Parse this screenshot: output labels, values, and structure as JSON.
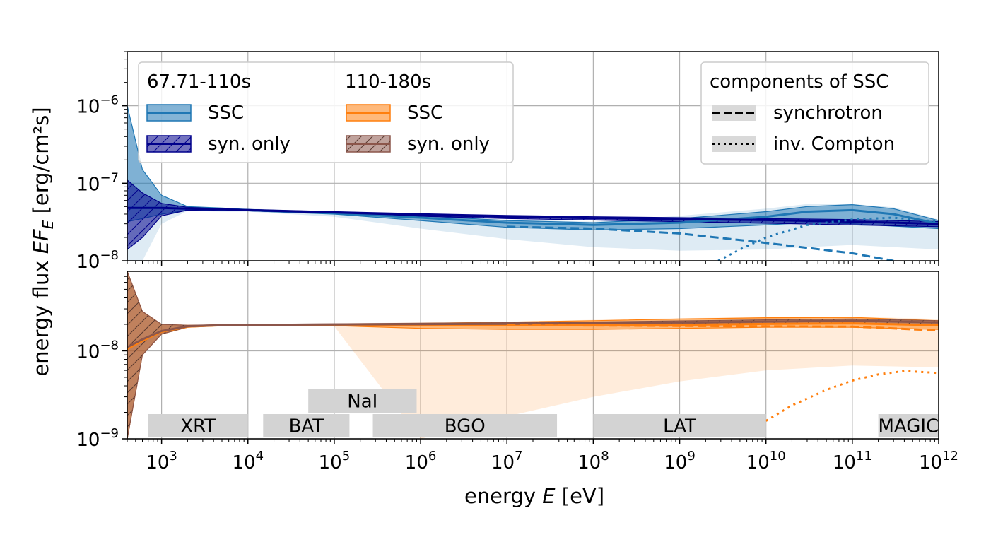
{
  "figure": {
    "ylabel_prefix": "energy flux ",
    "ylabel_symbol": "EF",
    "ylabel_sub": "E",
    "ylabel_unit": " [erg/cm²s]",
    "xlabel_prefix": "energy ",
    "xlabel_symbol": "E",
    "xlabel_unit": " [eV]"
  },
  "legend_left": {
    "groups": [
      {
        "title": "67.71-110s",
        "items": [
          {
            "label": "SSC",
            "color": "#1f77b4",
            "hatch": false
          },
          {
            "label": "syn. only",
            "color": "#00008b",
            "hatch": true
          }
        ]
      },
      {
        "title": "110-180s",
        "items": [
          {
            "label": "SSC",
            "color": "#ff7f0e",
            "hatch": false
          },
          {
            "label": "syn. only",
            "color": "#8c564b",
            "hatch": true
          }
        ]
      }
    ]
  },
  "legend_right": {
    "title": "components of SSC",
    "items": [
      {
        "label": "synchrotron",
        "style": "dashed"
      },
      {
        "label": "inv. Compton",
        "style": "dotted"
      }
    ]
  },
  "instruments": [
    {
      "name": "XRT",
      "range": [
        700,
        10000
      ],
      "row": 0
    },
    {
      "name": "BAT",
      "range": [
        15000,
        150000
      ],
      "row": 0
    },
    {
      "name": "NaI",
      "range": [
        50000,
        900000
      ],
      "row": 1
    },
    {
      "name": "BGO",
      "range": [
        280000,
        38000000
      ],
      "row": 0
    },
    {
      "name": "LAT",
      "range": [
        100000000,
        10000000000
      ],
      "row": 0
    },
    {
      "name": "MAGIC",
      "range": [
        200000000000,
        1000000000000
      ],
      "row": 0
    }
  ],
  "chart_data": [
    {
      "type": "area",
      "panel": "top",
      "xscale": "log",
      "yscale": "log",
      "xlim": [
        400,
        1000000000000
      ],
      "ylim": [
        1e-08,
        5e-06
      ],
      "yticks": [
        {
          "value": 1e-06,
          "mant": "10",
          "exp": "−6"
        },
        {
          "value": 1e-07,
          "mant": "10",
          "exp": "−7"
        },
        {
          "value": 1e-08,
          "mant": "10",
          "exp": "−8"
        }
      ],
      "grid": true,
      "series": [
        {
          "name": "SSC",
          "color": "#1f77b4",
          "x": [
            400,
            600,
            1000,
            2000,
            5000,
            10000,
            100000,
            1000000,
            10000000,
            100000000,
            1000000000,
            10000000000,
            30000000000,
            100000000000,
            300000000000,
            1000000000000
          ],
          "y": [
            4.8e-08,
            4.8e-08,
            4.8e-08,
            4.7e-08,
            4.6e-08,
            4.5e-08,
            4.1e-08,
            3.6e-08,
            3.1e-08,
            2.9e-08,
            3.1e-08,
            3.7e-08,
            4.3e-08,
            4.5e-08,
            4e-08,
            3e-08
          ],
          "y_low": [
            3.2e-08,
            3.5e-08,
            4e-08,
            4.5e-08,
            4.4e-08,
            4.4e-08,
            4e-08,
            3.3e-08,
            2.7e-08,
            2.5e-08,
            2.6e-08,
            2.9e-08,
            3.1e-08,
            3e-08,
            2.8e-08,
            2.6e-08
          ],
          "y_high": [
            1e-06,
            1.5e-07,
            7e-08,
            5e-08,
            4.8e-08,
            4.6e-08,
            4.2e-08,
            3.8e-08,
            3.3e-08,
            3.1e-08,
            3.5e-08,
            4.3e-08,
            5e-08,
            5.3e-08,
            4.7e-08,
            3.3e-08
          ],
          "outer_low": [
            1e-08,
            1e-08,
            3e-08,
            4.4e-08,
            4.3e-08,
            4.3e-08,
            3.7e-08,
            2.6e-08,
            1.9e-08,
            1.5e-08,
            1.35e-08,
            1.4e-08,
            1.5e-08,
            1.6e-08,
            1.5e-08,
            1.4e-08
          ],
          "outer_high": [
            1e-06,
            1.5e-07,
            7e-08,
            5e-08,
            4.8e-08,
            4.7e-08,
            4.3e-08,
            3.9e-08,
            3.4e-08,
            3.2e-08,
            3.8e-08,
            4.7e-08,
            5.4e-08,
            5.4e-08,
            4.9e-08,
            3.4e-08
          ]
        },
        {
          "name": "syn. only",
          "color": "#00008b",
          "x": [
            400,
            600,
            1000,
            2000,
            5000,
            10000,
            100000,
            1000000,
            10000000,
            100000000,
            1000000000,
            10000000000,
            100000000000,
            1000000000000
          ],
          "y": [
            4.8e-08,
            4.8e-08,
            4.8e-08,
            4.7e-08,
            4.6e-08,
            4.5e-08,
            4.2e-08,
            3.9e-08,
            3.7e-08,
            3.55e-08,
            3.45e-08,
            3.35e-08,
            3.2e-08,
            3e-08
          ],
          "y_low": [
            1.4e-08,
            2e-08,
            3.8e-08,
            4.5e-08,
            4.5e-08,
            4.4e-08,
            4.1e-08,
            3.75e-08,
            3.5e-08,
            3.35e-08,
            3.2e-08,
            3.05e-08,
            2.9e-08,
            2.75e-08
          ],
          "y_high": [
            1.1e-07,
            7.5e-08,
            5.5e-08,
            4.9e-08,
            4.7e-08,
            4.6e-08,
            4.3e-08,
            4.05e-08,
            3.85e-08,
            3.7e-08,
            3.6e-08,
            3.5e-08,
            3.4e-08,
            3.2e-08
          ]
        },
        {
          "name": "synchrotron",
          "color": "#1f77b4",
          "x": [
            10000000,
            100000000,
            1000000000,
            10000000000,
            100000000000,
            300000000000
          ],
          "y": [
            2.75e-08,
            2.6e-08,
            2.25e-08,
            1.7e-08,
            1.25e-08,
            1e-08
          ]
        },
        {
          "name": "inv. Compton",
          "color": "#1f77b4",
          "x": [
            2800000000,
            5000000000,
            10000000000,
            30000000000,
            100000000000,
            300000000000,
            1000000000000
          ],
          "y": [
            1e-08,
            1.4e-08,
            2e-08,
            2.9e-08,
            3.4e-08,
            3.6e-08,
            3.2e-08
          ]
        }
      ]
    },
    {
      "type": "area",
      "panel": "bottom",
      "xscale": "log",
      "yscale": "log",
      "xlim": [
        400,
        1000000000000
      ],
      "ylim": [
        1e-09,
        8e-08
      ],
      "yticks": [
        {
          "value": 1e-08,
          "mant": "10",
          "exp": "−8"
        },
        {
          "value": 1e-09,
          "mant": "10",
          "exp": "−9"
        }
      ],
      "xticks": [
        {
          "value": 1000,
          "mant": "10",
          "exp": "3"
        },
        {
          "value": 10000,
          "mant": "10",
          "exp": "4"
        },
        {
          "value": 100000,
          "mant": "10",
          "exp": "5"
        },
        {
          "value": 1000000,
          "mant": "10",
          "exp": "6"
        },
        {
          "value": 10000000,
          "mant": "10",
          "exp": "7"
        },
        {
          "value": 100000000,
          "mant": "10",
          "exp": "8"
        },
        {
          "value": 1000000000,
          "mant": "10",
          "exp": "9"
        },
        {
          "value": 10000000000,
          "mant": "10",
          "exp": "10"
        },
        {
          "value": 100000000000,
          "mant": "10",
          "exp": "11"
        },
        {
          "value": 1000000000000,
          "mant": "10",
          "exp": "12"
        }
      ],
      "grid": true,
      "series": [
        {
          "name": "SSC",
          "color": "#ff7f0e",
          "x": [
            400,
            600,
            1000,
            2000,
            5000,
            10000,
            100000,
            1000000,
            10000000,
            100000000,
            1000000000,
            10000000000,
            100000000000,
            1000000000000
          ],
          "y": [
            1.05e-08,
            1.3e-08,
            1.65e-08,
            1.88e-08,
            1.95e-08,
            1.96e-08,
            1.97e-08,
            1.96e-08,
            1.95e-08,
            1.95e-08,
            1.97e-08,
            2.02e-08,
            2.05e-08,
            1.95e-08
          ],
          "y_low": [
            1e-09,
            9e-09,
            1.55e-08,
            1.85e-08,
            1.93e-08,
            1.94e-08,
            1.93e-08,
            1.8e-08,
            1.75e-08,
            1.75e-08,
            1.8e-08,
            1.85e-08,
            1.85e-08,
            1.75e-08
          ],
          "y_high": [
            8e-08,
            2.8e-08,
            2e-08,
            1.95e-08,
            1.97e-08,
            1.98e-08,
            2e-08,
            2.05e-08,
            2.12e-08,
            2.2e-08,
            2.3e-08,
            2.38e-08,
            2.4e-08,
            2.2e-08
          ],
          "outer_low": [
            1e-09,
            9e-09,
            1.55e-08,
            1.85e-08,
            1.9e-08,
            1.92e-08,
            1.9e-08,
            1e-09,
            1.8e-09,
            3e-09,
            4.5e-09,
            6e-09,
            6.8e-09,
            6.5e-09
          ],
          "outer_high": [
            8e-08,
            2.8e-08,
            2e-08,
            1.96e-08,
            1.98e-08,
            2e-08,
            2.05e-08,
            2.1e-08,
            2.15e-08,
            2.25e-08,
            2.35e-08,
            2.42e-08,
            2.45e-08,
            2.3e-08
          ]
        },
        {
          "name": "syn. only",
          "color": "#8c564b",
          "x": [
            400,
            600,
            1000,
            2000,
            5000,
            10000,
            100000,
            1000000,
            10000000,
            100000000,
            1000000000,
            10000000000,
            100000000000,
            1000000000000
          ],
          "y": [
            1.1e-08,
            1.35e-08,
            1.68e-08,
            1.9e-08,
            1.96e-08,
            1.97e-08,
            1.99e-08,
            2.01e-08,
            2.03e-08,
            2.06e-08,
            2.1e-08,
            2.15e-08,
            2.2e-08,
            2.1e-08
          ],
          "y_low": [
            1e-09,
            9e-09,
            1.55e-08,
            1.86e-08,
            1.93e-08,
            1.95e-08,
            1.96e-08,
            1.97e-08,
            1.98e-08,
            2e-08,
            2.02e-08,
            2.05e-08,
            2.06e-08,
            1.95e-08
          ],
          "y_high": [
            8e-08,
            2.8e-08,
            2e-08,
            1.95e-08,
            1.98e-08,
            2e-08,
            2.03e-08,
            2.06e-08,
            2.09e-08,
            2.13e-08,
            2.19e-08,
            2.25e-08,
            2.3e-08,
            2.2e-08
          ]
        },
        {
          "name": "synchrotron",
          "color": "#ff7f0e",
          "x": [
            10000000,
            100000000,
            1000000000,
            10000000000,
            100000000000,
            300000000000,
            1000000000000
          ],
          "y": [
            1.95e-08,
            1.94e-08,
            1.92e-08,
            1.9e-08,
            1.88e-08,
            1.8e-08,
            1.7e-08
          ]
        },
        {
          "name": "inv. Compton",
          "color": "#ff7f0e",
          "x": [
            10000000000,
            20000000000,
            50000000000,
            100000000000,
            200000000000,
            400000000000,
            1000000000000
          ],
          "y": [
            1.6e-09,
            2.4e-09,
            3.6e-09,
            4.6e-09,
            5.4e-09,
            5.9e-09,
            5.6e-09
          ]
        }
      ]
    }
  ]
}
